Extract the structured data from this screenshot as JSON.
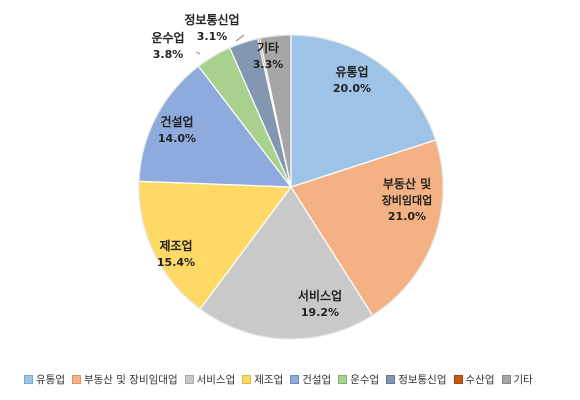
{
  "chart_data": {
    "type": "pie",
    "series": [
      {
        "name": "유통업",
        "value": 20.0,
        "value_label": "20.0%",
        "label_lines": [
          "유통업"
        ],
        "color": "#9dc3e6",
        "edge": "#7ea6cf"
      },
      {
        "name": "부동산 및 장비임대업",
        "value": 21.0,
        "value_label": "21.0%",
        "label_lines": [
          "부동산 및",
          "장비임대업"
        ],
        "color": "#f4b183",
        "edge": "#d9946a"
      },
      {
        "name": "서비스업",
        "value": 19.2,
        "value_label": "19.2%",
        "label_lines": [
          "서비스업"
        ],
        "color": "#c9c9c9",
        "edge": "#a9a9a9"
      },
      {
        "name": "제조업",
        "value": 15.4,
        "value_label": "15.4%",
        "label_lines": [
          "제조업"
        ],
        "color": "#ffd966",
        "edge": "#dcb94d"
      },
      {
        "name": "건설업",
        "value": 14.0,
        "value_label": "14.0%",
        "label_lines": [
          "건설업"
        ],
        "color": "#8faadc",
        "edge": "#6f8cc2"
      },
      {
        "name": "운수업",
        "value": 3.8,
        "value_label": "3.8%",
        "label_lines": [
          "운수업"
        ],
        "color": "#a9d18e",
        "edge": "#86b06b"
      },
      {
        "name": "정보통신업",
        "value": 3.1,
        "value_label": "3.1%",
        "label_lines": [
          "정보통신업"
        ],
        "color": "#8497b0",
        "edge": "#66799a"
      },
      {
        "name": "수산업",
        "value": 0.2,
        "value_label": "",
        "label_lines": [],
        "color": "#c55a11",
        "edge": "#a34606"
      },
      {
        "name": "기타",
        "value": 3.3,
        "value_label": "3.3%",
        "label_lines": [
          "기타"
        ],
        "color": "#a6a6a6",
        "edge": "#868686"
      }
    ],
    "legend_position": "bottom"
  }
}
